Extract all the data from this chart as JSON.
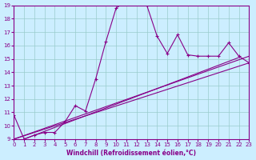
{
  "xlabel": "Windchill (Refroidissement éolien,°C)",
  "bg_color": "#cceeff",
  "line_color": "#880088",
  "grid_color": "#99cccc",
  "xlim": [
    0,
    23
  ],
  "ylim": [
    9,
    19
  ],
  "xticks": [
    0,
    1,
    2,
    3,
    4,
    5,
    6,
    7,
    8,
    9,
    10,
    11,
    12,
    13,
    14,
    15,
    16,
    17,
    18,
    19,
    20,
    21,
    22,
    23
  ],
  "yticks": [
    9,
    10,
    11,
    12,
    13,
    14,
    15,
    16,
    17,
    18,
    19
  ],
  "curve1_x": [
    0,
    1,
    2,
    3,
    4,
    5,
    6,
    7,
    8,
    9,
    10,
    11,
    12,
    13,
    14,
    15,
    16,
    17,
    18,
    19,
    20,
    21,
    22,
    23
  ],
  "curve1_y": [
    10.8,
    9.0,
    9.3,
    9.5,
    9.5,
    10.3,
    11.5,
    11.1,
    13.5,
    16.3,
    18.8,
    19.3,
    19.3,
    19.0,
    16.7,
    15.4,
    16.8,
    15.3,
    15.2,
    15.2,
    15.2,
    16.2,
    15.2,
    14.7
  ],
  "line1_x": [
    0,
    23
  ],
  "line1_y": [
    9.0,
    14.7
  ],
  "line2_x": [
    0,
    23
  ],
  "line2_y": [
    9.0,
    15.2
  ],
  "line3_x": [
    1,
    22
  ],
  "line3_y": [
    9.0,
    15.1
  ]
}
